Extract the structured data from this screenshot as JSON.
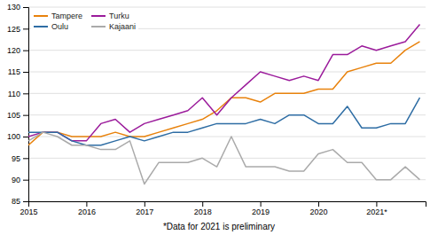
{
  "chart_data": {
    "type": "line",
    "x": [
      2015.0,
      2015.25,
      2015.5,
      2015.75,
      2016.0,
      2016.25,
      2016.5,
      2016.75,
      2017.0,
      2017.25,
      2017.5,
      2017.75,
      2018.0,
      2018.25,
      2018.5,
      2018.75,
      2019.0,
      2019.25,
      2019.5,
      2019.75,
      2020.0,
      2020.25,
      2020.5,
      2020.75,
      2021.0,
      2021.25,
      2021.5,
      2021.75
    ],
    "series": [
      {
        "name": "Tampere",
        "color": "#e8820c",
        "values": [
          98,
          101,
          101,
          100,
          100,
          100,
          101,
          100,
          100,
          101,
          102,
          103,
          104,
          106,
          109,
          109,
          108,
          110,
          110,
          110,
          111,
          111,
          115,
          116,
          117,
          117,
          120,
          122
        ]
      },
      {
        "name": "Turku",
        "color": "#9b1b9b",
        "values": [
          100,
          101,
          101,
          99,
          99,
          103,
          104,
          101,
          103,
          104,
          105,
          106,
          109,
          105,
          109,
          112,
          115,
          114,
          113,
          114,
          113,
          119,
          119,
          121,
          120,
          121,
          122,
          126
        ]
      },
      {
        "name": "Oulu",
        "color": "#2e6da4",
        "values": [
          101,
          101,
          101,
          99,
          98,
          98,
          99,
          100,
          99,
          100,
          101,
          101,
          102,
          103,
          103,
          103,
          104,
          103,
          105,
          105,
          103,
          103,
          107,
          102,
          102,
          103,
          103,
          109
        ]
      },
      {
        "name": "Kajaani",
        "color": "#aaaaaa",
        "values": [
          99,
          101,
          100,
          98,
          98,
          97,
          97,
          99,
          89,
          94,
          94,
          94,
          95,
          93,
          100,
          93,
          93,
          93,
          92,
          92,
          96,
          97,
          94,
          94,
          90,
          90,
          93,
          90
        ]
      }
    ],
    "xlim": [
      2015.0,
      2021.85
    ],
    "xticks": [
      2015,
      2016,
      2017,
      2018,
      2019,
      2020,
      {
        "value": 2021,
        "label": "2021*"
      }
    ],
    "ylim": [
      85,
      130
    ],
    "yticks": [
      85,
      90,
      95,
      100,
      105,
      110,
      115,
      120,
      125,
      130
    ],
    "grid": true,
    "legend": "upper left",
    "footnote": "*Data for 2021 is preliminary"
  }
}
